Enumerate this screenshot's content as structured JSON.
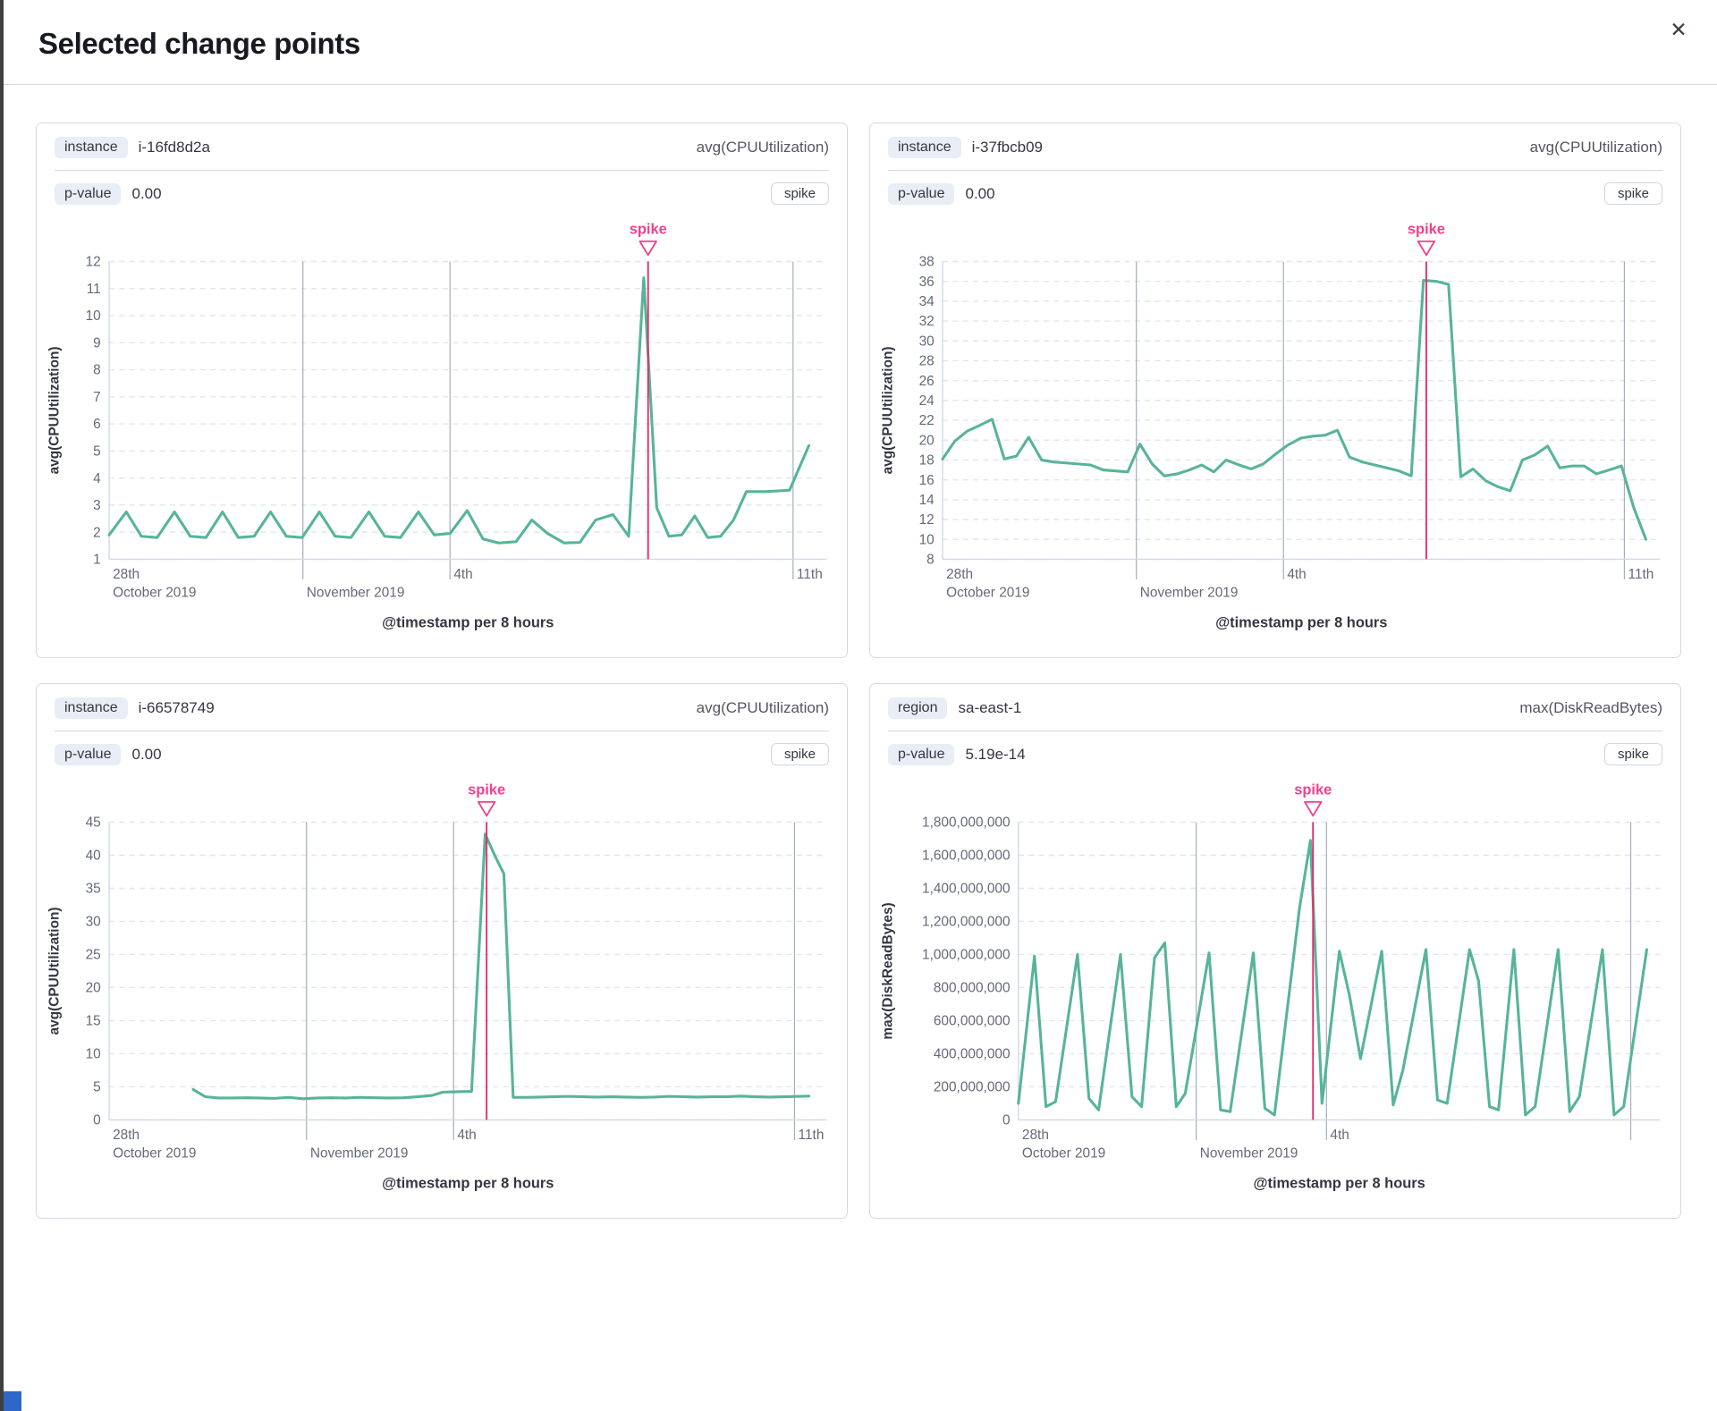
{
  "modal": {
    "title": "Selected change points",
    "close_icon": "✕"
  },
  "colors": {
    "line": "#57b49a",
    "spike_label": "#f0428c",
    "spike_line": "#e42a68",
    "h_grid": "#e2e6f0",
    "v_grid": "#a8afbc",
    "axis": "#d3dae6",
    "tick_text": "#646a77",
    "axis_title": "#343741"
  },
  "panels": [
    {
      "key_label": "instance",
      "key_value": "i-16fd8d2a",
      "metric": "avg(CPUUtilization)",
      "p_label": "p-value",
      "p_value": "0.00",
      "type_badge": "spike",
      "chart": {
        "annotation": "spike",
        "y_title": "avg(CPUUtilization)",
        "x_title": "@timestamp per 8 hours",
        "y_min": 1,
        "y_max": 12,
        "y_ticks": [
          {
            "v": 12,
            "label": "12"
          },
          {
            "v": 11,
            "label": "11"
          },
          {
            "v": 10,
            "label": "10"
          },
          {
            "v": 9,
            "label": "9"
          },
          {
            "v": 8,
            "label": "8"
          },
          {
            "v": 7,
            "label": "7"
          },
          {
            "v": 6,
            "label": "6"
          },
          {
            "v": 5,
            "label": "5"
          },
          {
            "v": 4,
            "label": "4"
          },
          {
            "v": 3,
            "label": "3"
          },
          {
            "v": 2,
            "label": "2"
          },
          {
            "v": 1,
            "label": "1"
          }
        ],
        "v_grids": [
          27.0,
          47.5,
          95.3
        ],
        "x_labels": [
          {
            "x": 0,
            "l1": "28th",
            "l2": "October 2019"
          },
          {
            "x": 27.0,
            "l1": "",
            "l2": "November 2019"
          },
          {
            "x": 47.5,
            "l1": "4th",
            "l2": ""
          },
          {
            "x": 95.3,
            "l1": "11th",
            "l2": ""
          }
        ],
        "spike_x": 75.1,
        "points": [
          [
            0,
            1.9
          ],
          [
            2.4,
            2.75
          ],
          [
            4.5,
            1.85
          ],
          [
            6.7,
            1.8
          ],
          [
            9.1,
            2.75
          ],
          [
            11.3,
            1.85
          ],
          [
            13.5,
            1.8
          ],
          [
            15.8,
            2.75
          ],
          [
            18,
            1.8
          ],
          [
            20.2,
            1.85
          ],
          [
            22.5,
            2.75
          ],
          [
            24.7,
            1.85
          ],
          [
            26.9,
            1.8
          ],
          [
            29.3,
            2.75
          ],
          [
            31.5,
            1.85
          ],
          [
            33.7,
            1.8
          ],
          [
            36.2,
            2.75
          ],
          [
            38.4,
            1.85
          ],
          [
            40.6,
            1.8
          ],
          [
            43.1,
            2.75
          ],
          [
            45.3,
            1.9
          ],
          [
            47.5,
            1.95
          ],
          [
            49.9,
            2.8
          ],
          [
            52.1,
            1.75
          ],
          [
            54.3,
            1.6
          ],
          [
            56.7,
            1.65
          ],
          [
            58.9,
            2.45
          ],
          [
            61.1,
            1.95
          ],
          [
            63.4,
            1.6
          ],
          [
            65.6,
            1.62
          ],
          [
            67.8,
            2.45
          ],
          [
            70.2,
            2.65
          ],
          [
            72.4,
            1.85
          ],
          [
            74.5,
            11.4
          ],
          [
            76.3,
            2.9
          ],
          [
            78,
            1.85
          ],
          [
            79.8,
            1.9
          ],
          [
            81.6,
            2.6
          ],
          [
            83.4,
            1.8
          ],
          [
            85.2,
            1.85
          ],
          [
            87,
            2.45
          ],
          [
            88.8,
            3.5
          ],
          [
            91.5,
            3.5
          ],
          [
            94.8,
            3.55
          ],
          [
            97.5,
            5.2
          ]
        ]
      }
    },
    {
      "key_label": "instance",
      "key_value": "i-37fbcb09",
      "metric": "avg(CPUUtilization)",
      "p_label": "p-value",
      "p_value": "0.00",
      "type_badge": "spike",
      "chart": {
        "annotation": "spike",
        "y_title": "avg(CPUUtilization)",
        "x_title": "@timestamp per 8 hours",
        "y_min": 8,
        "y_max": 38,
        "y_ticks": [
          {
            "v": 38,
            "label": "38"
          },
          {
            "v": 36,
            "label": "36"
          },
          {
            "v": 34,
            "label": "34"
          },
          {
            "v": 32,
            "label": "32"
          },
          {
            "v": 30,
            "label": "30"
          },
          {
            "v": 28,
            "label": "28"
          },
          {
            "v": 26,
            "label": "26"
          },
          {
            "v": 24,
            "label": "24"
          },
          {
            "v": 22,
            "label": "22"
          },
          {
            "v": 20,
            "label": "20"
          },
          {
            "v": 18,
            "label": "18"
          },
          {
            "v": 16,
            "label": "16"
          },
          {
            "v": 14,
            "label": "14"
          },
          {
            "v": 12,
            "label": "12"
          },
          {
            "v": 10,
            "label": "10"
          },
          {
            "v": 8,
            "label": "8"
          }
        ],
        "v_grids": [
          27.0,
          47.5,
          95.0
        ],
        "x_labels": [
          {
            "x": 0,
            "l1": "28th",
            "l2": "October 2019"
          },
          {
            "x": 27.0,
            "l1": "",
            "l2": "November 2019"
          },
          {
            "x": 47.5,
            "l1": "4th",
            "l2": ""
          },
          {
            "x": 95.0,
            "l1": "11th",
            "l2": ""
          }
        ],
        "spike_x": 67.4,
        "points": [
          [
            0,
            18.1
          ],
          [
            1.7,
            19.9
          ],
          [
            3.4,
            20.9
          ],
          [
            5.2,
            21.5
          ],
          [
            6.9,
            22.1
          ],
          [
            8.6,
            18.1
          ],
          [
            10.3,
            18.4
          ],
          [
            12,
            20.3
          ],
          [
            13.8,
            18
          ],
          [
            15.5,
            17.8
          ],
          [
            17.2,
            17.7
          ],
          [
            18.9,
            17.6
          ],
          [
            20.6,
            17.5
          ],
          [
            22.4,
            17
          ],
          [
            24.1,
            16.9
          ],
          [
            25.8,
            16.8
          ],
          [
            27.5,
            19.6
          ],
          [
            29.2,
            17.6
          ],
          [
            30.9,
            16.4
          ],
          [
            32.7,
            16.6
          ],
          [
            34.4,
            17
          ],
          [
            36.1,
            17.5
          ],
          [
            37.8,
            16.8
          ],
          [
            39.5,
            18
          ],
          [
            41.3,
            17.5
          ],
          [
            43,
            17.1
          ],
          [
            44.7,
            17.6
          ],
          [
            46.4,
            18.6
          ],
          [
            48.1,
            19.5
          ],
          [
            49.9,
            20.2
          ],
          [
            51.6,
            20.4
          ],
          [
            53.3,
            20.5
          ],
          [
            55,
            21
          ],
          [
            56.7,
            18.3
          ],
          [
            58.5,
            17.8
          ],
          [
            60.2,
            17.5
          ],
          [
            61.9,
            17.2
          ],
          [
            63.6,
            16.9
          ],
          [
            65.3,
            16.4
          ],
          [
            67,
            36.1
          ],
          [
            68.8,
            36
          ],
          [
            70.5,
            35.7
          ],
          [
            72.2,
            16.3
          ],
          [
            73.9,
            17.1
          ],
          [
            75.7,
            15.9
          ],
          [
            77.4,
            15.3
          ],
          [
            79.1,
            14.9
          ],
          [
            80.8,
            18
          ],
          [
            82.5,
            18.5
          ],
          [
            84.3,
            19.4
          ],
          [
            86,
            17.2
          ],
          [
            87.7,
            17.4
          ],
          [
            89.4,
            17.4
          ],
          [
            91.1,
            16.6
          ],
          [
            92.9,
            17
          ],
          [
            94.6,
            17.4
          ],
          [
            96.3,
            13.2
          ],
          [
            98,
            10
          ]
        ]
      }
    },
    {
      "key_label": "instance",
      "key_value": "i-66578749",
      "metric": "avg(CPUUtilization)",
      "p_label": "p-value",
      "p_value": "0.00",
      "type_badge": "spike",
      "chart": {
        "annotation": "spike",
        "y_title": "avg(CPUUtilization)",
        "x_title": "@timestamp per 8 hours",
        "y_min": 0,
        "y_max": 45,
        "y_ticks": [
          {
            "v": 45,
            "label": "45"
          },
          {
            "v": 40,
            "label": "40"
          },
          {
            "v": 35,
            "label": "35"
          },
          {
            "v": 30,
            "label": "30"
          },
          {
            "v": 25,
            "label": "25"
          },
          {
            "v": 20,
            "label": "20"
          },
          {
            "v": 15,
            "label": "15"
          },
          {
            "v": 10,
            "label": "10"
          },
          {
            "v": 5,
            "label": "5"
          },
          {
            "v": 0,
            "label": "0"
          }
        ],
        "v_grids": [
          27.5,
          48.0,
          95.5
        ],
        "x_labels": [
          {
            "x": 0,
            "l1": "28th",
            "l2": "October 2019"
          },
          {
            "x": 27.5,
            "l1": "",
            "l2": "November 2019"
          },
          {
            "x": 48.0,
            "l1": "4th",
            "l2": ""
          },
          {
            "x": 95.5,
            "l1": "11th",
            "l2": ""
          }
        ],
        "spike_x": 52.6,
        "points": [
          [
            11.7,
            4.6
          ],
          [
            13.4,
            3.5
          ],
          [
            15.2,
            3.3
          ],
          [
            17,
            3.3
          ],
          [
            19,
            3.35
          ],
          [
            21,
            3.3
          ],
          [
            23,
            3.25
          ],
          [
            25,
            3.4
          ],
          [
            27,
            3.2
          ],
          [
            29,
            3.3
          ],
          [
            31,
            3.35
          ],
          [
            33,
            3.3
          ],
          [
            35,
            3.4
          ],
          [
            37,
            3.35
          ],
          [
            39,
            3.3
          ],
          [
            41,
            3.35
          ],
          [
            43,
            3.5
          ],
          [
            45,
            3.7
          ],
          [
            46.5,
            4.2
          ],
          [
            48.5,
            4.25
          ],
          [
            50.5,
            4.3
          ],
          [
            52.4,
            43.2
          ],
          [
            53.8,
            39.8
          ],
          [
            55,
            37.2
          ],
          [
            56.3,
            3.4
          ],
          [
            58,
            3.4
          ],
          [
            60,
            3.45
          ],
          [
            62,
            3.5
          ],
          [
            64,
            3.55
          ],
          [
            66,
            3.5
          ],
          [
            68,
            3.45
          ],
          [
            70,
            3.5
          ],
          [
            72,
            3.45
          ],
          [
            74,
            3.4
          ],
          [
            76,
            3.45
          ],
          [
            78,
            3.55
          ],
          [
            80,
            3.5
          ],
          [
            82,
            3.45
          ],
          [
            84,
            3.5
          ],
          [
            86,
            3.5
          ],
          [
            88,
            3.6
          ],
          [
            90,
            3.5
          ],
          [
            92,
            3.45
          ],
          [
            94,
            3.5
          ],
          [
            96,
            3.55
          ],
          [
            97.5,
            3.6
          ]
        ]
      }
    },
    {
      "key_label": "region",
      "key_value": "sa-east-1",
      "metric": "max(DiskReadBytes)",
      "p_label": "p-value",
      "p_value": "5.19e-14",
      "type_badge": "spike",
      "chart": {
        "annotation": "spike",
        "y_title": "max(DiskReadBytes)",
        "x_title": "@timestamp per 8 hours",
        "y_min": 0,
        "y_max": 1.8,
        "y_ticks": [
          {
            "v": 1.8,
            "label": "1,800,000,000"
          },
          {
            "v": 1.6,
            "label": "1,600,000,000"
          },
          {
            "v": 1.4,
            "label": "1,400,000,000"
          },
          {
            "v": 1.2,
            "label": "1,200,000,000"
          },
          {
            "v": 1.0,
            "label": "1,000,000,000"
          },
          {
            "v": 0.8,
            "label": "800,000,000"
          },
          {
            "v": 0.6,
            "label": "600,000,000"
          },
          {
            "v": 0.4,
            "label": "400,000,000"
          },
          {
            "v": 0.2,
            "label": "200,000,000"
          },
          {
            "v": 0,
            "label": "0"
          }
        ],
        "v_grids": [
          27.7,
          48.0,
          95.4
        ],
        "x_labels": [
          {
            "x": 0,
            "l1": "28th",
            "l2": "October 2019"
          },
          {
            "x": 27.7,
            "l1": "",
            "l2": "November 2019"
          },
          {
            "x": 48.0,
            "l1": "4th",
            "l2": ""
          }
        ],
        "spike_x": 45.9,
        "points": [
          [
            0,
            0.1
          ],
          [
            2.5,
            0.99
          ],
          [
            4.3,
            0.08
          ],
          [
            5.8,
            0.11
          ],
          [
            9.2,
            1.0
          ],
          [
            11,
            0.13
          ],
          [
            12.5,
            0.06
          ],
          [
            15.9,
            1.0
          ],
          [
            17.7,
            0.14
          ],
          [
            19.2,
            0.08
          ],
          [
            21.2,
            0.98
          ],
          [
            22.8,
            1.07
          ],
          [
            24.6,
            0.08
          ],
          [
            26,
            0.16
          ],
          [
            29.7,
            1.01
          ],
          [
            31.5,
            0.06
          ],
          [
            33,
            0.05
          ],
          [
            36.6,
            1.01
          ],
          [
            38.4,
            0.07
          ],
          [
            39.9,
            0.03
          ],
          [
            43.8,
            1.28
          ],
          [
            45.5,
            1.69
          ],
          [
            47.3,
            0.1
          ],
          [
            50,
            1.02
          ],
          [
            51.6,
            0.75
          ],
          [
            53.3,
            0.37
          ],
          [
            56.6,
            1.02
          ],
          [
            58.4,
            0.09
          ],
          [
            59.9,
            0.3
          ],
          [
            63.5,
            1.03
          ],
          [
            65.3,
            0.12
          ],
          [
            66.8,
            0.1
          ],
          [
            70.3,
            1.03
          ],
          [
            71.7,
            0.84
          ],
          [
            73.4,
            0.08
          ],
          [
            74.8,
            0.06
          ],
          [
            77.2,
            1.03
          ],
          [
            79,
            0.03
          ],
          [
            80.5,
            0.08
          ],
          [
            84.1,
            1.03
          ],
          [
            85.9,
            0.05
          ],
          [
            87.4,
            0.14
          ],
          [
            91,
            1.03
          ],
          [
            92.8,
            0.03
          ],
          [
            94.3,
            0.08
          ],
          [
            97.9,
            1.03
          ]
        ]
      }
    }
  ]
}
